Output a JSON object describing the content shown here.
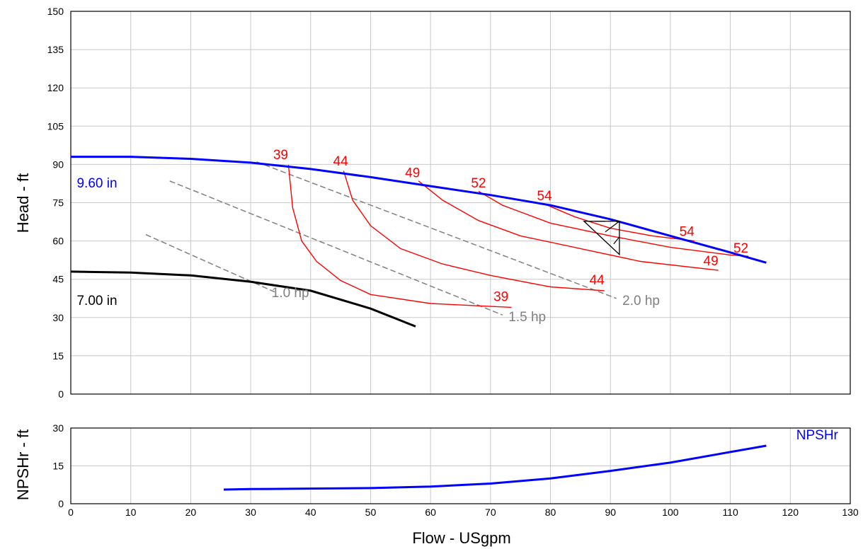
{
  "chart_data": [
    {
      "type": "line",
      "title": "",
      "xlabel": "",
      "ylabel": "Head - ft",
      "xlim": [
        0,
        130
      ],
      "ylim": [
        0,
        150
      ],
      "x_ticks": [
        "0",
        "10",
        "20",
        "30",
        "40",
        "50",
        "60",
        "70",
        "80",
        "90",
        "100",
        "110",
        "120",
        "130"
      ],
      "y_ticks": [
        "0",
        "15",
        "30",
        "45",
        "60",
        "75",
        "90",
        "105",
        "120",
        "135",
        "150"
      ],
      "grid": true,
      "colors": {
        "impeller_max": "#0000ff",
        "impeller_min": "#000000",
        "efficiency": "#ff0000",
        "power": "#808080",
        "frame": "#000000",
        "grid": "#c8c8c8"
      },
      "impeller_curves": [
        {
          "name": "9.60 in",
          "points": [
            [
              0,
              93
            ],
            [
              10,
              93
            ],
            [
              20,
              92.2
            ],
            [
              30,
              90.7
            ],
            [
              40,
              88.2
            ],
            [
              50,
              85
            ],
            [
              60,
              81.5
            ],
            [
              70,
              78
            ],
            [
              80,
              74
            ],
            [
              90,
              68.5
            ],
            [
              100,
              62
            ],
            [
              110,
              55.5
            ],
            [
              116,
              51.5
            ]
          ]
        },
        {
          "name": "7.00 in",
          "points": [
            [
              0,
              48
            ],
            [
              10,
              47.6
            ],
            [
              20,
              46.5
            ],
            [
              30,
              44
            ],
            [
              40,
              40.5
            ],
            [
              50,
              33.5
            ],
            [
              57.5,
              26.5
            ]
          ]
        }
      ],
      "efficiency_curves": [
        {
          "name": "39",
          "points": [
            [
              36.3,
              89.8
            ],
            [
              37,
              73
            ],
            [
              38.5,
              60
            ],
            [
              41,
              52
            ],
            [
              45,
              44.5
            ],
            [
              50,
              39
            ],
            [
              60,
              35.5
            ],
            [
              73.5,
              34
            ]
          ]
        },
        {
          "name": "44",
          "points": [
            [
              45.5,
              87.5
            ],
            [
              47,
              76
            ],
            [
              50,
              66
            ],
            [
              55,
              57
            ],
            [
              62,
              51
            ],
            [
              70,
              46.5
            ],
            [
              80,
              42
            ],
            [
              89,
              40.5
            ]
          ]
        },
        {
          "name": "49",
          "points": [
            [
              58,
              83.5
            ],
            [
              62,
              76
            ],
            [
              68,
              68
            ],
            [
              75,
              62
            ],
            [
              85,
              57
            ],
            [
              95,
              52
            ],
            [
              108,
              48.5
            ]
          ]
        },
        {
          "name": "52",
          "points": [
            [
              68,
              79.5
            ],
            [
              72,
              74
            ],
            [
              80,
              67
            ],
            [
              90,
              62
            ],
            [
              100,
              57.5
            ],
            [
              110,
              54.5
            ],
            [
              113,
              54
            ]
          ]
        },
        {
          "name": "54",
          "points": [
            [
              79,
              74.5
            ],
            [
              84,
              69.5
            ],
            [
              90,
              65
            ],
            [
              97,
              62
            ],
            [
              104,
              60
            ]
          ]
        }
      ],
      "efficiency_labels_left": [
        "39",
        "44",
        "49",
        "52",
        "54"
      ],
      "efficiency_labels_right": [
        "39",
        "44",
        "49",
        "52",
        "54"
      ],
      "power_curves": [
        {
          "name": "1.0 hp",
          "points": [
            [
              12.5,
              62.5
            ],
            [
              34,
              40
            ]
          ]
        },
        {
          "name": "1.5 hp",
          "points": [
            [
              16.5,
              83.5
            ],
            [
              72,
              31
            ]
          ]
        },
        {
          "name": "2.0 hp",
          "points": [
            [
              31,
              91
            ],
            [
              91,
              37.5
            ]
          ]
        }
      ],
      "bep_marker": {
        "x": 91.5,
        "y": 63
      }
    },
    {
      "type": "line",
      "title": "",
      "xlabel": "Flow - USgpm",
      "ylabel": "NPSHr - ft",
      "xlim": [
        0,
        130
      ],
      "ylim": [
        0,
        30
      ],
      "x_ticks": [
        "0",
        "10",
        "20",
        "30",
        "40",
        "50",
        "60",
        "70",
        "80",
        "90",
        "100",
        "110",
        "120",
        "130"
      ],
      "y_ticks": [
        "0",
        "15",
        "30"
      ],
      "grid": true,
      "series": [
        {
          "name": "NPSHr",
          "color": "#0000ff",
          "points": [
            [
              25.5,
              5.6
            ],
            [
              30,
              5.8
            ],
            [
              40,
              6
            ],
            [
              50,
              6.2
            ],
            [
              60,
              6.8
            ],
            [
              70,
              8
            ],
            [
              80,
              10
            ],
            [
              90,
              13
            ],
            [
              100,
              16.3
            ],
            [
              110,
              20.5
            ],
            [
              116,
              23
            ]
          ]
        }
      ]
    }
  ]
}
